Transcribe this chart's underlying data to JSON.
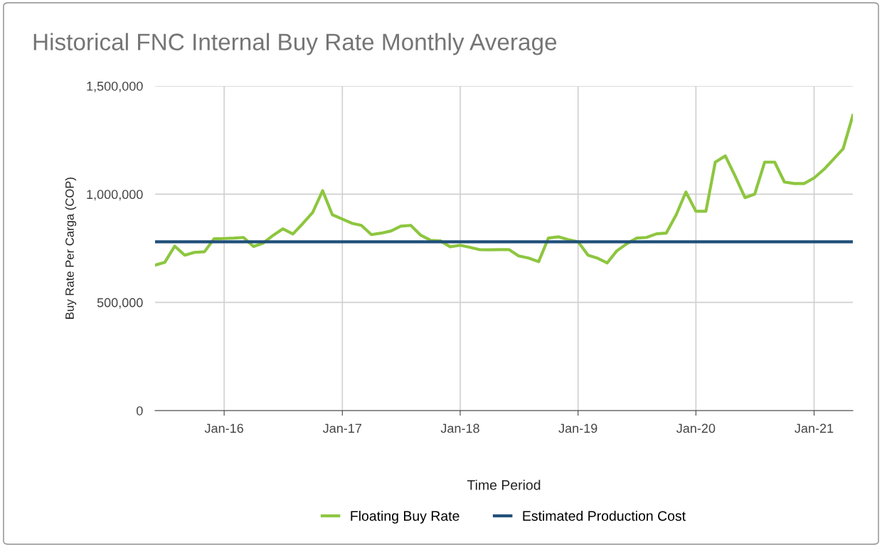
{
  "chart_data": {
    "type": "line",
    "title": "Historical FNC Internal Buy Rate Monthly Average",
    "xlabel": "Time Period",
    "ylabel": "Buy Rate Per Carga (COP)",
    "xlim": [
      "2015-06",
      "2021-05"
    ],
    "ylim": [
      0,
      1500000
    ],
    "xticks": [
      {
        "value": "2016-01",
        "label": "Jan-16"
      },
      {
        "value": "2017-01",
        "label": "Jan-17"
      },
      {
        "value": "2018-01",
        "label": "Jan-18"
      },
      {
        "value": "2019-01",
        "label": "Jan-19"
      },
      {
        "value": "2020-01",
        "label": "Jan-20"
      },
      {
        "value": "2021-01",
        "label": "Jan-21"
      }
    ],
    "yticks": [
      {
        "value": 0,
        "label": "0"
      },
      {
        "value": 500000,
        "label": "500,000"
      },
      {
        "value": 1000000,
        "label": "1,000,000"
      },
      {
        "value": 1500000,
        "label": "1,500,000"
      }
    ],
    "grid": true,
    "legend": "bottom",
    "marker": "none",
    "line_style": "solid",
    "series": [
      {
        "name": "Floating Buy Rate",
        "color": "#8dc63f",
        "x": [
          "2015-06",
          "2015-07",
          "2015-08",
          "2015-09",
          "2015-10",
          "2015-11",
          "2015-12",
          "2016-01",
          "2016-02",
          "2016-03",
          "2016-04",
          "2016-05",
          "2016-06",
          "2016-07",
          "2016-08",
          "2016-09",
          "2016-10",
          "2016-11",
          "2016-12",
          "2017-01",
          "2017-02",
          "2017-03",
          "2017-04",
          "2017-05",
          "2017-06",
          "2017-07",
          "2017-08",
          "2017-09",
          "2017-10",
          "2017-11",
          "2017-12",
          "2018-01",
          "2018-02",
          "2018-03",
          "2018-04",
          "2018-05",
          "2018-06",
          "2018-07",
          "2018-08",
          "2018-09",
          "2018-10",
          "2018-11",
          "2018-12",
          "2019-01",
          "2019-02",
          "2019-03",
          "2019-04",
          "2019-05",
          "2019-06",
          "2019-07",
          "2019-08",
          "2019-09",
          "2019-10",
          "2019-11",
          "2019-12",
          "2020-01",
          "2020-02",
          "2020-03",
          "2020-04",
          "2020-05",
          "2020-06",
          "2020-07",
          "2020-08",
          "2020-09",
          "2020-10",
          "2020-11",
          "2020-12",
          "2021-01",
          "2021-02",
          "2021-03",
          "2021-04",
          "2021-05"
        ],
        "values": [
          672000,
          685000,
          760000,
          718000,
          731000,
          734000,
          794000,
          795000,
          797000,
          800000,
          758000,
          774000,
          810000,
          840000,
          816000,
          865000,
          915000,
          1016000,
          905000,
          885000,
          865000,
          856000,
          813000,
          820000,
          830000,
          852000,
          856000,
          810000,
          787000,
          784000,
          757000,
          764000,
          754000,
          744000,
          743000,
          744000,
          744000,
          715000,
          705000,
          688000,
          797000,
          803000,
          790000,
          780000,
          718000,
          705000,
          682000,
          738000,
          771000,
          797000,
          800000,
          817000,
          820000,
          905000,
          1010000,
          921000,
          921000,
          1148000,
          1177000,
          1085000,
          984000,
          1000000,
          1148000,
          1148000,
          1056000,
          1049000,
          1049000,
          1075000,
          1115000,
          1160000,
          1210000,
          1364000
        ]
      },
      {
        "name": "Estimated Production Cost",
        "color": "#1f4e79",
        "x": [
          "2015-06",
          "2021-05"
        ],
        "values": [
          780000,
          780000
        ]
      }
    ]
  }
}
